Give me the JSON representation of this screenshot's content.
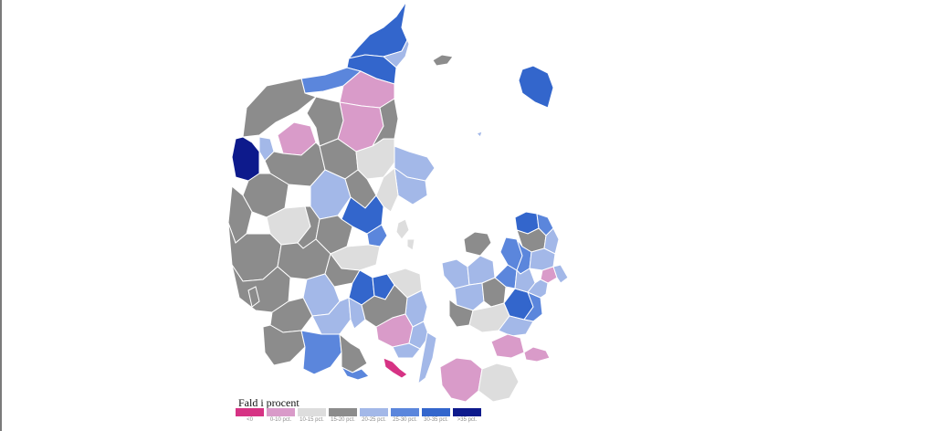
{
  "map": {
    "legend": {
      "title": "Fald i procent",
      "classes": [
        {
          "label": "<0",
          "color": "#d63384"
        },
        {
          "label": "0-10 pct.",
          "color": "#d99bc9"
        },
        {
          "label": "10-15 pct.",
          "color": "#dddddd"
        },
        {
          "label": "15-20 pct.",
          "color": "#8c8c8c"
        },
        {
          "label": "20-25 pct.",
          "color": "#a3b8e8"
        },
        {
          "label": "25-30 pct.",
          "color": "#5b86dc"
        },
        {
          "label": "30-35 pct.",
          "color": "#3366cc"
        },
        {
          "label": ">35 pct.",
          "color": "#0d1a8c"
        }
      ]
    }
  }
}
